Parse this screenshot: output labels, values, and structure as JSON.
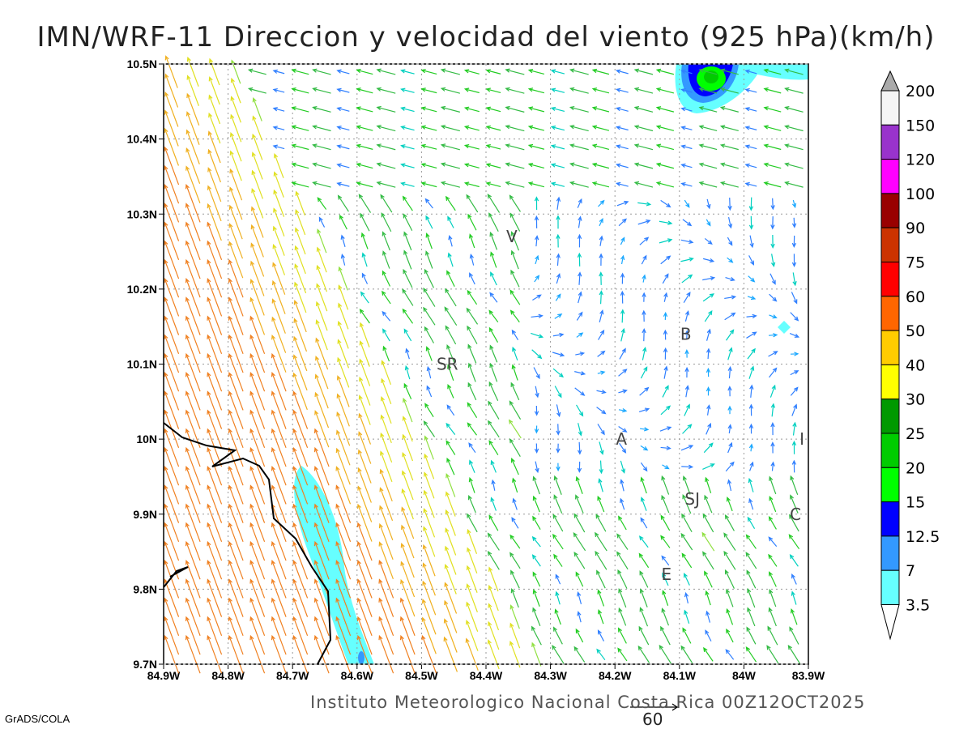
{
  "title": "IMN/WRF-11 Direccion y velocidad del viento (925 hPa)(km/h)",
  "credit": "Instituto Meteorologico Nacional Costa Rica 00Z12OCT2025",
  "software": "GrADS/COLA",
  "reference_vector": {
    "label": "60",
    "value": 60
  },
  "map": {
    "lon_range": [
      -84.9,
      -83.9
    ],
    "lat_range": [
      9.7,
      10.5
    ],
    "lon_ticks": [
      "84.9W",
      "84.8W",
      "84.7W",
      "84.6W",
      "84.5W",
      "84.4W",
      "84.3W",
      "84.2W",
      "84.1W",
      "84W",
      "83.9W"
    ],
    "lat_ticks": [
      "10.5N",
      "10.4N",
      "10.3N",
      "10.2N",
      "10.1N",
      "10N",
      "9.9N",
      "9.8N",
      "9.7N"
    ],
    "stations": [
      {
        "label": "V",
        "lon": -84.36,
        "lat": 10.27
      },
      {
        "label": "SR",
        "lon": -84.46,
        "lat": 10.1
      },
      {
        "label": "B",
        "lon": -84.09,
        "lat": 10.14
      },
      {
        "label": "A",
        "lon": -84.19,
        "lat": 10.0
      },
      {
        "label": "I",
        "lon": -83.91,
        "lat": 10.0
      },
      {
        "label": "SJ",
        "lon": -84.08,
        "lat": 9.92
      },
      {
        "label": "C",
        "lon": -83.92,
        "lat": 9.9
      },
      {
        "label": "E",
        "lon": -84.12,
        "lat": 9.82
      }
    ]
  },
  "colorbar": {
    "levels": [
      "3.5",
      "7",
      "12.5",
      "15",
      "20",
      "25",
      "30",
      "40",
      "50",
      "60",
      "75",
      "90",
      "100",
      "120",
      "150",
      "200"
    ],
    "colors": [
      "#ffffff",
      "#66ffff",
      "#3399ff",
      "#0000ff",
      "#00ff00",
      "#00cc00",
      "#009900",
      "#ffff00",
      "#ffcc00",
      "#ff6600",
      "#ff0000",
      "#cc3300",
      "#990000",
      "#ff00ff",
      "#9933cc",
      "#f5f5f5",
      "#aaaaaa"
    ]
  }
}
